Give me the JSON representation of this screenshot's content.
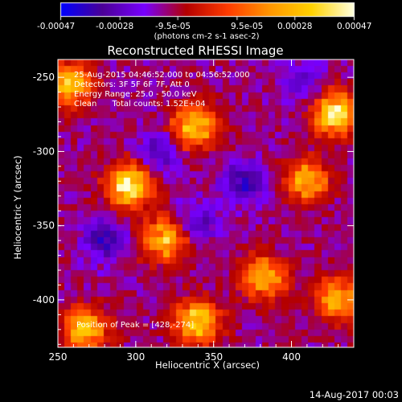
{
  "colorbar": {
    "ticks": [
      "-0.00047",
      "-0.00028",
      "-9.5e-05",
      "9.5e-05",
      "0.00028",
      "0.00047"
    ],
    "units": "(photons cm-2 s-1 asec-2)",
    "min": -0.00047,
    "max": 0.00047
  },
  "chart_data": {
    "type": "heatmap",
    "title": "Reconstructed RHESSI Image",
    "xlabel": "Heliocentric X (arcsec)",
    "ylabel": "Heliocentric Y (arcsec)",
    "xlim": [
      250,
      440
    ],
    "ylim": [
      -432,
      -238
    ],
    "x_ticks": [
      250,
      300,
      350,
      400
    ],
    "y_ticks": [
      -250,
      -300,
      -350,
      -400
    ],
    "grid": false,
    "colormap": [
      "#0000ff",
      "#4b0096",
      "#7800ff",
      "#b40000",
      "#ff3c00",
      "#ff9600",
      "#ffd200",
      "#ffffdc"
    ],
    "annotations": [
      "25-Aug-2015 04:46:52.000 to 04:56:52.000",
      "Detectors: 3F 5F 6F 7F, Att 0",
      "Energy Range: 25.0 - 50.0 keV",
      "Clean      Total counts: 1.52E+04"
    ],
    "peak_label": "Position of Peak = [428,-274]",
    "bright_sources": [
      {
        "x": 296,
        "y": -323,
        "level": 1.0
      },
      {
        "x": 428,
        "y": -274,
        "level": 1.0
      },
      {
        "x": 258,
        "y": -255,
        "level": 0.8
      },
      {
        "x": 338,
        "y": -283,
        "level": 0.8
      },
      {
        "x": 318,
        "y": -360,
        "level": 0.75
      },
      {
        "x": 382,
        "y": -385,
        "level": 0.7
      },
      {
        "x": 410,
        "y": -320,
        "level": 0.7
      },
      {
        "x": 268,
        "y": -420,
        "level": 0.75
      },
      {
        "x": 340,
        "y": -415,
        "level": 0.85
      },
      {
        "x": 430,
        "y": -400,
        "level": 0.7
      }
    ],
    "dark_regions": [
      {
        "x": 280,
        "y": -360,
        "level": -0.9
      },
      {
        "x": 370,
        "y": -320,
        "level": -0.85
      },
      {
        "x": 340,
        "y": -347,
        "level": -0.6
      },
      {
        "x": 315,
        "y": -300,
        "level": -0.6
      },
      {
        "x": 410,
        "y": -255,
        "level": -0.5
      }
    ]
  },
  "footer": {
    "timestamp": "14-Aug-2017 00:03"
  }
}
